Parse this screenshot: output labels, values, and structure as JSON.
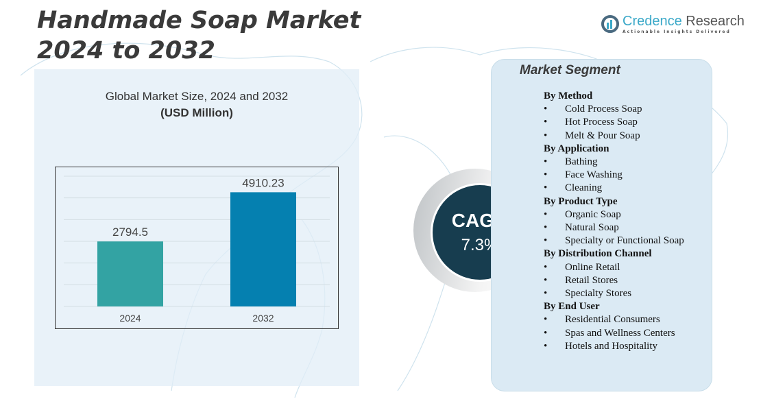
{
  "header": {
    "title_line1": "Handmade Soap Market",
    "title_line2": "2024 to 2032"
  },
  "logo": {
    "name_part1": "Credence",
    "name_part2": " Research",
    "tagline": "Actionable Insights Delivered"
  },
  "chart_data": {
    "type": "bar",
    "title": "Global Market Size, 2024 and 2032",
    "subtitle": "(USD Million)",
    "categories": [
      "2024",
      "2032"
    ],
    "values": [
      2794.5,
      4910.23
    ],
    "data_labels": [
      "2794.5",
      "4910.23"
    ],
    "colors": [
      "#33a3a3",
      "#0580b0"
    ],
    "ylim": [
      0,
      5600
    ],
    "grid": true,
    "xlabel": "",
    "ylabel": ""
  },
  "cagr": {
    "label": "CAGR",
    "value": "7.3%"
  },
  "segments": {
    "heading": "Market Segment",
    "groups": [
      {
        "title": "By Method",
        "items": [
          "Cold Process Soap",
          "Hot Process Soap",
          "Melt & Pour Soap"
        ]
      },
      {
        "title": "By Application",
        "items": [
          "Bathing",
          "Face Washing",
          "Cleaning"
        ]
      },
      {
        "title": "By Product Type",
        "items": [
          "Organic Soap",
          "Natural Soap",
          "Specialty or Functional Soap"
        ]
      },
      {
        "title": "By Distribution Channel",
        "items": [
          "Online Retail",
          "Retail Stores",
          "Specialty Stores"
        ]
      },
      {
        "title": "By End User",
        "items": [
          "Residential Consumers",
          "Spas and Wellness Centers",
          "Hotels and Hospitality"
        ]
      }
    ]
  }
}
